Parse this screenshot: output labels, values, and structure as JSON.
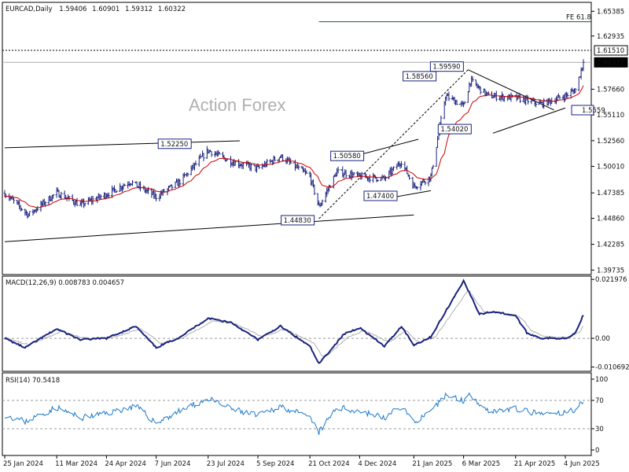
{
  "chart_data": [
    {
      "type": "candlestick",
      "panel": "price",
      "title": "EURCAD,Daily",
      "ohlc": {
        "open": "1.59406",
        "high": "1.60901",
        "low": "1.59312",
        "close": "1.60322"
      },
      "watermark": "Action Forex",
      "ylim": [
        1.3929,
        1.6627
      ],
      "yticks": [
        "1.65385",
        "1.62935",
        "1.57660",
        "1.55110",
        "1.52560",
        "1.50010",
        "1.47385",
        "1.44860",
        "1.42285",
        "1.39735"
      ],
      "price_tags": [
        {
          "value": 1.6151,
          "label": "1.61510",
          "style": "dashed"
        },
        {
          "value": 1.60322,
          "label": "1.60322",
          "style": "current"
        },
        {
          "value": 1.5559,
          "label": "1.5559",
          "style": "pivot-label"
        }
      ],
      "fe_label": "FE 61.8",
      "fe_value": 1.6435,
      "annotations": [
        {
          "text": "1.52250",
          "date": "2024-07-08",
          "value": 1.5225
        },
        {
          "text": "1.50580",
          "date": "2024-11-14",
          "value": 1.5058
        },
        {
          "text": "1.44830",
          "date": "2024-10-29",
          "value": 1.4483
        },
        {
          "text": "1.47400",
          "date": "2024-12-26",
          "value": 1.474
        },
        {
          "text": "1.58560",
          "date": "2025-02-18",
          "value": 1.5856
        },
        {
          "text": "1.59590",
          "date": "2025-03-10",
          "value": 1.5959
        },
        {
          "text": "1.54020",
          "date": "2025-03-03",
          "value": 1.5402
        }
      ],
      "xticks": [
        "25 Jan 2024",
        "11 Mar 2024",
        "24 Apr 2024",
        "7 Jun 2024",
        "23 Jul 2024",
        "5 Sep 2024",
        "21 Oct 2024",
        "4 Dec 2024",
        "21 Jan 2025",
        "6 Mar 2025",
        "21 Apr 2025",
        "4 Jun 2025"
      ],
      "close_anchors": [
        [
          "2024-01-25",
          1.4735
        ],
        [
          "2024-02-15",
          1.452
        ],
        [
          "2024-03-11",
          1.474
        ],
        [
          "2024-04-01",
          1.462
        ],
        [
          "2024-04-24",
          1.4725
        ],
        [
          "2024-05-15",
          1.485
        ],
        [
          "2024-06-07",
          1.47
        ],
        [
          "2024-06-28",
          1.485
        ],
        [
          "2024-07-23",
          1.516
        ],
        [
          "2024-08-12",
          1.505
        ],
        [
          "2024-09-05",
          1.498
        ],
        [
          "2024-09-25",
          1.51
        ],
        [
          "2024-10-21",
          1.49
        ],
        [
          "2024-10-29",
          1.46
        ],
        [
          "2024-11-14",
          1.495
        ],
        [
          "2024-12-04",
          1.49
        ],
        [
          "2024-12-26",
          1.488
        ],
        [
          "2025-01-10",
          1.505
        ],
        [
          "2025-01-21",
          1.48
        ],
        [
          "2025-02-05",
          1.49
        ],
        [
          "2025-02-18",
          1.57
        ],
        [
          "2025-03-06",
          1.56
        ],
        [
          "2025-03-12",
          1.585
        ],
        [
          "2025-03-28",
          1.57
        ],
        [
          "2025-04-21",
          1.568
        ],
        [
          "2025-05-14",
          1.562
        ],
        [
          "2025-06-04",
          1.57
        ],
        [
          "2025-06-13",
          1.576
        ],
        [
          "2025-06-20",
          1.6032
        ]
      ]
    },
    {
      "type": "line",
      "panel": "macd",
      "title": "MACD(12,26,9) 0.008783 0.004657",
      "yticks": [
        "0.021976",
        "0.00",
        "-0.010692"
      ],
      "ylim": [
        -0.0123,
        0.0232
      ],
      "series": [
        {
          "name": "MACD",
          "color": "#1a237e",
          "anchors": [
            [
              "2024-01-25",
              0.0
            ],
            [
              "2024-02-12",
              -0.0035
            ],
            [
              "2024-03-11",
              0.0035
            ],
            [
              "2024-04-01",
              -0.0005
            ],
            [
              "2024-04-24",
              0.0
            ],
            [
              "2024-05-20",
              0.0045
            ],
            [
              "2024-06-07",
              -0.0035
            ],
            [
              "2024-06-28",
              0.0005
            ],
            [
              "2024-07-23",
              0.0075
            ],
            [
              "2024-08-12",
              0.006
            ],
            [
              "2024-09-05",
              -0.0005
            ],
            [
              "2024-09-25",
              0.0045
            ],
            [
              "2024-10-21",
              -0.003
            ],
            [
              "2024-10-29",
              -0.0095
            ],
            [
              "2024-11-20",
              0.0015
            ],
            [
              "2024-12-04",
              0.004
            ],
            [
              "2024-12-26",
              -0.003
            ],
            [
              "2025-01-10",
              0.0045
            ],
            [
              "2025-01-21",
              -0.0025
            ],
            [
              "2025-02-05",
              0.0005
            ],
            [
              "2025-03-06",
              0.0215
            ],
            [
              "2025-03-20",
              0.009
            ],
            [
              "2025-04-01",
              0.01
            ],
            [
              "2025-04-21",
              0.0085
            ],
            [
              "2025-05-01",
              0.002
            ],
            [
              "2025-05-14",
              0.0
            ],
            [
              "2025-06-04",
              0.0
            ],
            [
              "2025-06-13",
              0.002
            ],
            [
              "2025-06-20",
              0.0088
            ]
          ]
        },
        {
          "name": "Signal",
          "color": "#b0b0b0",
          "anchors": [
            [
              "2024-01-25",
              0.0002
            ],
            [
              "2024-02-16",
              -0.0025
            ],
            [
              "2024-03-15",
              0.0025
            ],
            [
              "2024-04-05",
              0.0
            ],
            [
              "2024-04-28",
              0.0002
            ],
            [
              "2024-05-24",
              0.0035
            ],
            [
              "2024-06-12",
              -0.002
            ],
            [
              "2024-07-02",
              0.0005
            ],
            [
              "2024-07-27",
              0.0065
            ],
            [
              "2024-08-16",
              0.0055
            ],
            [
              "2024-09-09",
              0.0005
            ],
            [
              "2024-09-29",
              0.0035
            ],
            [
              "2024-10-25",
              -0.002
            ],
            [
              "2024-11-02",
              -0.0075
            ],
            [
              "2024-11-24",
              0.0005
            ],
            [
              "2024-12-08",
              0.003
            ],
            [
              "2024-12-30",
              -0.0015
            ],
            [
              "2025-01-14",
              0.003
            ],
            [
              "2025-01-25",
              -0.0015
            ],
            [
              "2025-02-09",
              0.0005
            ],
            [
              "2025-03-10",
              0.018
            ],
            [
              "2025-03-24",
              0.01
            ],
            [
              "2025-04-05",
              0.0095
            ],
            [
              "2025-04-25",
              0.008
            ],
            [
              "2025-05-05",
              0.003
            ],
            [
              "2025-05-18",
              0.0005
            ],
            [
              "2025-06-08",
              0.0005
            ],
            [
              "2025-06-17",
              0.0025
            ],
            [
              "2025-06-20",
              0.0047
            ]
          ]
        }
      ]
    },
    {
      "type": "line",
      "panel": "rsi",
      "title": "RSI(14) 70.5418",
      "yticks": [
        "100",
        "70",
        "30",
        "0"
      ],
      "levels": [
        70,
        30
      ],
      "ylim": [
        0,
        100
      ],
      "series": [
        {
          "name": "RSI",
          "color": "#1e78c8",
          "anchors": [
            [
              "2024-01-25",
              50
            ],
            [
              "2024-02-12",
              40
            ],
            [
              "2024-03-11",
              60
            ],
            [
              "2024-04-01",
              45
            ],
            [
              "2024-04-24",
              52
            ],
            [
              "2024-05-20",
              62
            ],
            [
              "2024-06-07",
              38
            ],
            [
              "2024-06-28",
              55
            ],
            [
              "2024-07-23",
              72
            ],
            [
              "2024-08-12",
              58
            ],
            [
              "2024-09-05",
              48
            ],
            [
              "2024-09-25",
              62
            ],
            [
              "2024-10-21",
              45
            ],
            [
              "2024-10-29",
              25
            ],
            [
              "2024-11-14",
              60
            ],
            [
              "2024-12-04",
              55
            ],
            [
              "2024-12-26",
              45
            ],
            [
              "2025-01-10",
              62
            ],
            [
              "2025-01-21",
              40
            ],
            [
              "2025-02-05",
              52
            ],
            [
              "2025-02-18",
              78
            ],
            [
              "2025-03-06",
              70
            ],
            [
              "2025-03-12",
              78
            ],
            [
              "2025-03-28",
              55
            ],
            [
              "2025-04-21",
              58
            ],
            [
              "2025-05-14",
              50
            ],
            [
              "2025-06-04",
              52
            ],
            [
              "2025-06-13",
              58
            ],
            [
              "2025-06-20",
              70.5
            ]
          ]
        }
      ]
    }
  ],
  "colors": {
    "candle": "#1a237e",
    "ma": "#cc0000",
    "grid": "#d0d0d0",
    "frame": "#000000",
    "trend": "#000000"
  },
  "icons": {
    "label-box": "rect-outline"
  }
}
